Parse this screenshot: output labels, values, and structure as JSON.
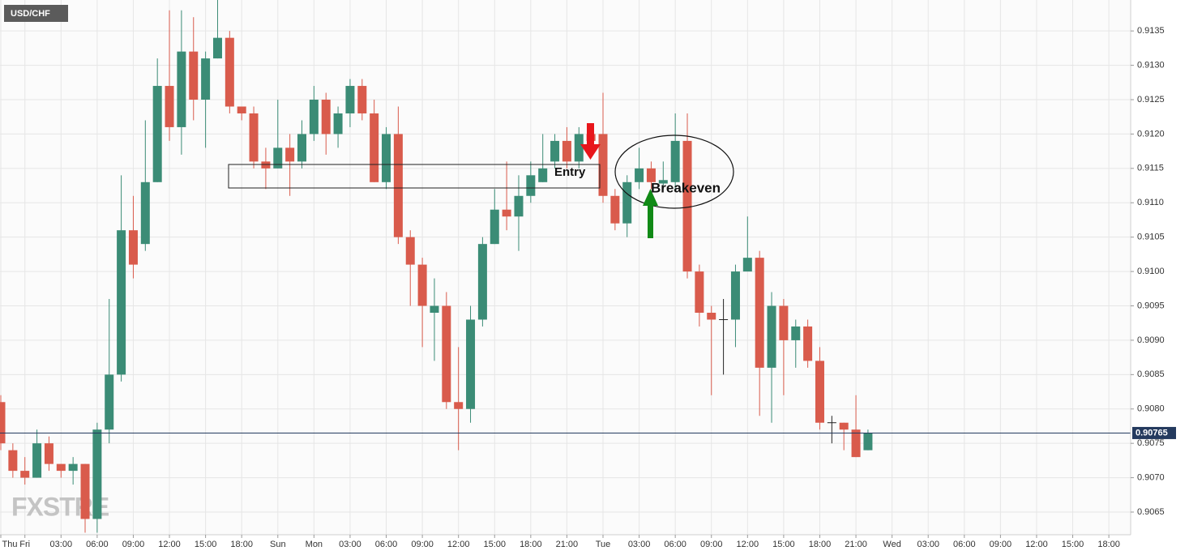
{
  "chart_data": {
    "type": "candlestick",
    "title": "USD/CHF",
    "categories": [
      "Thu",
      null,
      "Fri",
      null,
      null,
      "03:00",
      null,
      null,
      "06:00",
      null,
      null,
      "09:00",
      null,
      null,
      "12:00",
      null,
      null,
      "15:00",
      null,
      null,
      "18:00",
      null,
      null,
      "Sun",
      null,
      null,
      "Mon",
      null,
      null,
      "03:00",
      null,
      null,
      "06:00",
      null,
      null,
      "09:00",
      null,
      null,
      "12:00",
      null,
      null,
      "15:00",
      null,
      null,
      "18:00",
      null,
      null,
      "21:00",
      null,
      null,
      "Tue",
      null,
      null,
      "03:00",
      null,
      null,
      "06:00",
      null,
      null,
      "09:00",
      null,
      null,
      "12:00",
      null,
      null,
      "15:00",
      null,
      null,
      "18:00",
      null,
      null,
      "21:00",
      null,
      null,
      "Wed",
      null,
      null,
      "03:00",
      null,
      null,
      "06:00",
      null,
      null,
      "09:00",
      null,
      null,
      "12:00",
      null,
      null,
      "15:00",
      null,
      null,
      "18:00"
    ],
    "open": [
      0.9081,
      0.9074,
      0.9071,
      0.907,
      0.9075,
      0.9072,
      0.9071,
      0.9072,
      0.9064,
      0.9077,
      0.9085,
      0.9106,
      0.9104,
      0.9113,
      0.9127,
      0.9121,
      0.9132,
      0.9125,
      0.9131,
      0.9134,
      0.9124,
      0.9123,
      0.9116,
      0.9115,
      0.9118,
      0.9116,
      0.912,
      0.9125,
      0.912,
      0.9123,
      0.9127,
      0.9123,
      0.9113,
      0.912,
      0.9105,
      0.9101,
      0.9094,
      0.9095,
      0.9081,
      0.908,
      0.9093,
      0.9104,
      0.9109,
      0.9108,
      0.9111,
      0.9113,
      0.9116,
      0.9119,
      0.9116,
      0.912,
      0.912,
      0.9111,
      0.9107,
      0.9113,
      0.9115,
      0.91128,
      0.9113,
      0.9119,
      0.91,
      0.9094,
      0.9093,
      0.9093,
      0.91,
      0.9102,
      0.9086,
      0.9095,
      0.909,
      0.9092,
      0.9087,
      0.9078,
      0.9078,
      0.9077,
      0.9074,
      null,
      null,
      null,
      null,
      null,
      null,
      null,
      null,
      null,
      null,
      null,
      null,
      null,
      null,
      null,
      null,
      null,
      null,
      null,
      null
    ],
    "high": [
      0.9082,
      0.9075,
      0.9073,
      0.9077,
      0.9076,
      0.9072,
      0.9073,
      0.9072,
      0.9078,
      0.9096,
      0.9114,
      0.9111,
      0.9122,
      0.9131,
      0.9138,
      0.9138,
      0.9137,
      0.9132,
      0.914,
      0.9135,
      0.9124,
      0.9124,
      0.9118,
      0.9125,
      0.912,
      0.9122,
      0.9127,
      0.9126,
      0.9124,
      0.9128,
      0.9128,
      0.9125,
      0.9121,
      0.9124,
      0.9106,
      0.9102,
      0.9099,
      0.9097,
      0.9089,
      0.9095,
      0.9105,
      0.9112,
      0.9116,
      0.9114,
      0.9116,
      0.912,
      0.912,
      0.9121,
      0.9121,
      0.912,
      0.9126,
      0.9112,
      0.9114,
      0.9118,
      0.9116,
      0.9116,
      0.9123,
      0.9123,
      0.9101,
      0.9095,
      0.9096,
      0.9101,
      0.9108,
      0.9103,
      0.9097,
      0.9096,
      0.9093,
      0.9093,
      0.9089,
      0.9079,
      0.9078,
      0.9082,
      0.9077,
      null,
      null,
      null,
      null,
      null,
      null,
      null,
      null,
      null,
      null,
      null,
      null,
      null,
      null,
      null,
      null,
      null,
      null,
      null,
      null
    ],
    "low": [
      0.9074,
      0.907,
      0.9069,
      0.907,
      0.9071,
      0.907,
      0.9069,
      0.9062,
      0.9062,
      0.9075,
      0.9084,
      0.9099,
      0.9103,
      0.9113,
      0.9119,
      0.9117,
      0.9122,
      0.9118,
      0.9131,
      0.9123,
      0.9122,
      0.9115,
      0.9112,
      0.9115,
      0.9111,
      0.9115,
      0.9119,
      0.9117,
      0.9118,
      0.9121,
      0.9122,
      0.9113,
      0.9112,
      0.9104,
      0.9095,
      0.9089,
      0.9087,
      0.908,
      0.9074,
      0.9078,
      0.9092,
      0.9104,
      0.9106,
      0.9103,
      0.911,
      0.9113,
      0.9115,
      0.9115,
      0.9115,
      0.9119,
      0.911,
      0.9106,
      0.9105,
      0.9112,
      0.9112,
      0.9112,
      0.9112,
      0.9099,
      0.9092,
      0.9082,
      0.9085,
      0.9089,
      0.91,
      0.9079,
      0.9078,
      0.9082,
      0.9086,
      0.9086,
      0.9077,
      0.9075,
      0.9074,
      0.9073,
      0.9074,
      null,
      null,
      null,
      null,
      null,
      null,
      null,
      null,
      null,
      null,
      null,
      null,
      null,
      null,
      null,
      null,
      null,
      null,
      null,
      null
    ],
    "close": [
      0.9075,
      0.9071,
      0.907,
      0.9075,
      0.9072,
      0.9071,
      0.9072,
      0.9064,
      0.9077,
      0.9085,
      0.9106,
      0.9101,
      0.9113,
      0.9127,
      0.9121,
      0.9132,
      0.9125,
      0.9131,
      0.9134,
      0.9124,
      0.9123,
      0.9116,
      0.9115,
      0.9118,
      0.9116,
      0.912,
      0.9125,
      0.912,
      0.9123,
      0.9127,
      0.9123,
      0.9113,
      0.912,
      0.9105,
      0.9101,
      0.9095,
      0.9095,
      0.9081,
      0.908,
      0.9093,
      0.9104,
      0.9109,
      0.9108,
      0.9111,
      0.9114,
      0.9115,
      0.9119,
      0.9116,
      0.912,
      0.9119,
      0.9111,
      0.9107,
      0.9113,
      0.9115,
      0.9113,
      0.91133,
      0.9119,
      0.91,
      0.9094,
      0.9093,
      0.9093,
      0.91,
      0.9102,
      0.9086,
      0.9095,
      0.909,
      0.9092,
      0.9087,
      0.9078,
      0.9078,
      0.9077,
      0.9073,
      0.90765,
      null,
      null,
      null,
      null,
      null,
      null,
      null,
      null,
      null,
      null,
      null,
      null,
      null,
      null,
      null,
      null,
      null,
      null,
      null,
      null
    ],
    "up_color": "#3b8c76",
    "down_color": "#d95b4c",
    "doji_color": "#222222",
    "last_price": 0.90765,
    "last_price_color": "#243a5e",
    "ylim": [
      0.90617,
      0.91395
    ],
    "yticks": [
      0.9065,
      {
        "value": 0.907,
        "label": "0.9070"
      },
      0.9075,
      {
        "value": 0.908,
        "label": "0.9080"
      },
      0.9085,
      {
        "value": 0.909,
        "label": "0.9090"
      },
      0.9095,
      {
        "value": 0.91,
        "label": "0.9100"
      },
      0.9105,
      {
        "value": 0.911,
        "label": "0.9110"
      },
      0.9115,
      {
        "value": 0.912,
        "label": "0.9120"
      },
      0.9125,
      {
        "value": 0.913,
        "label": "0.9130"
      },
      0.9135
    ],
    "grid": true,
    "annotations": [
      "Entry",
      "Breakeven",
      "FXSTRE"
    ]
  }
}
